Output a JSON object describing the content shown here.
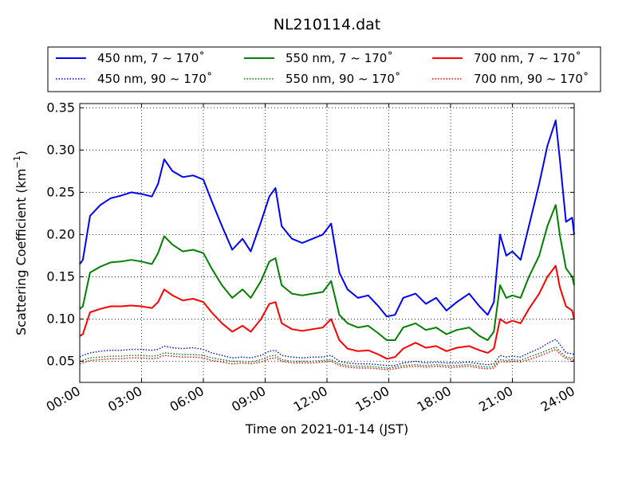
{
  "chart_data": {
    "type": "line",
    "title": "NL210114.dat",
    "xlabel": "Time on 2021-01-14 (JST)",
    "ylabel_main": "Scattering Coefficient (km",
    "ylabel_sup": "−1",
    "ylabel_end": ")",
    "xlim": [
      0,
      24
    ],
    "ylim": [
      0.025,
      0.355
    ],
    "grid": true,
    "legend_position": "top",
    "x_ticks": [
      0,
      3,
      6,
      9,
      12,
      15,
      18,
      21,
      24
    ],
    "x_tick_labels": [
      "00:00",
      "03:00",
      "06:00",
      "09:00",
      "12:00",
      "15:00",
      "18:00",
      "21:00",
      "24:00"
    ],
    "y_ticks": [
      0.05,
      0.1,
      0.15,
      0.2,
      0.25,
      0.3,
      0.35
    ],
    "y_tick_labels": [
      "0.05",
      "0.10",
      "0.15",
      "0.20",
      "0.25",
      "0.30",
      "0.35"
    ],
    "x_hours": [
      0,
      0.15,
      0.5,
      1,
      1.5,
      2,
      2.5,
      3,
      3.5,
      3.8,
      4.1,
      4.5,
      5,
      5.5,
      6,
      6.4,
      6.9,
      7.4,
      7.9,
      8.3,
      8.8,
      9.2,
      9.5,
      9.8,
      10.3,
      10.8,
      11.3,
      11.8,
      12.2,
      12.6,
      13,
      13.5,
      14,
      14.5,
      14.9,
      15.3,
      15.7,
      16.3,
      16.8,
      17.3,
      17.8,
      18.3,
      18.9,
      19.4,
      19.8,
      20.1,
      20.4,
      20.7,
      21,
      21.4,
      21.8,
      22.3,
      22.7,
      23.1,
      23.3,
      23.6,
      23.9,
      24
    ],
    "series": [
      {
        "name": "450 nm, 7 ~ 170˚",
        "color": "#0000ff",
        "style": "solid",
        "values": [
          0.165,
          0.17,
          0.222,
          0.235,
          0.243,
          0.246,
          0.25,
          0.248,
          0.245,
          0.26,
          0.289,
          0.275,
          0.268,
          0.27,
          0.265,
          0.24,
          0.21,
          0.182,
          0.195,
          0.18,
          0.215,
          0.245,
          0.255,
          0.21,
          0.195,
          0.19,
          0.195,
          0.2,
          0.213,
          0.155,
          0.135,
          0.125,
          0.128,
          0.115,
          0.103,
          0.105,
          0.125,
          0.13,
          0.118,
          0.125,
          0.11,
          0.12,
          0.13,
          0.115,
          0.105,
          0.12,
          0.2,
          0.175,
          0.18,
          0.17,
          0.21,
          0.26,
          0.305,
          0.335,
          0.29,
          0.215,
          0.22,
          0.2
        ]
      },
      {
        "name": "550 nm, 7 ~ 170˚",
        "color": "#008000",
        "style": "solid",
        "values": [
          0.112,
          0.115,
          0.155,
          0.162,
          0.167,
          0.168,
          0.17,
          0.168,
          0.165,
          0.178,
          0.198,
          0.188,
          0.18,
          0.182,
          0.178,
          0.16,
          0.14,
          0.125,
          0.135,
          0.125,
          0.145,
          0.168,
          0.172,
          0.14,
          0.13,
          0.128,
          0.13,
          0.132,
          0.145,
          0.105,
          0.095,
          0.09,
          0.092,
          0.083,
          0.075,
          0.075,
          0.09,
          0.095,
          0.087,
          0.09,
          0.082,
          0.087,
          0.09,
          0.08,
          0.075,
          0.085,
          0.14,
          0.125,
          0.128,
          0.125,
          0.15,
          0.175,
          0.21,
          0.235,
          0.2,
          0.16,
          0.15,
          0.14
        ]
      },
      {
        "name": "700 nm, 7 ~ 170˚",
        "color": "#ff0000",
        "style": "solid",
        "values": [
          0.08,
          0.082,
          0.108,
          0.112,
          0.115,
          0.115,
          0.116,
          0.115,
          0.113,
          0.12,
          0.135,
          0.128,
          0.122,
          0.124,
          0.12,
          0.108,
          0.095,
          0.085,
          0.092,
          0.085,
          0.1,
          0.118,
          0.12,
          0.095,
          0.088,
          0.086,
          0.088,
          0.09,
          0.1,
          0.075,
          0.065,
          0.062,
          0.063,
          0.058,
          0.053,
          0.055,
          0.065,
          0.072,
          0.066,
          0.068,
          0.062,
          0.066,
          0.068,
          0.063,
          0.06,
          0.065,
          0.1,
          0.095,
          0.098,
          0.095,
          0.112,
          0.13,
          0.15,
          0.163,
          0.138,
          0.115,
          0.11,
          0.1
        ]
      },
      {
        "name": "450 nm, 90 ~ 170˚",
        "color": "#0000ff",
        "style": "dotted",
        "values": [
          0.055,
          0.057,
          0.06,
          0.062,
          0.063,
          0.063,
          0.064,
          0.064,
          0.063,
          0.064,
          0.068,
          0.066,
          0.065,
          0.066,
          0.064,
          0.06,
          0.057,
          0.054,
          0.055,
          0.054,
          0.057,
          0.062,
          0.063,
          0.057,
          0.055,
          0.054,
          0.055,
          0.055,
          0.057,
          0.05,
          0.048,
          0.047,
          0.047,
          0.046,
          0.045,
          0.045,
          0.048,
          0.05,
          0.048,
          0.049,
          0.048,
          0.048,
          0.049,
          0.047,
          0.046,
          0.047,
          0.057,
          0.055,
          0.056,
          0.055,
          0.06,
          0.065,
          0.071,
          0.076,
          0.07,
          0.06,
          0.059,
          0.058
        ]
      },
      {
        "name": "550 nm, 90 ~ 170˚",
        "color": "#008000",
        "style": "dotted",
        "values": [
          0.05,
          0.051,
          0.054,
          0.055,
          0.056,
          0.056,
          0.057,
          0.057,
          0.056,
          0.057,
          0.06,
          0.059,
          0.058,
          0.058,
          0.057,
          0.054,
          0.052,
          0.05,
          0.05,
          0.049,
          0.052,
          0.056,
          0.057,
          0.052,
          0.05,
          0.05,
          0.05,
          0.051,
          0.052,
          0.047,
          0.045,
          0.044,
          0.044,
          0.043,
          0.042,
          0.043,
          0.045,
          0.046,
          0.045,
          0.046,
          0.045,
          0.045,
          0.046,
          0.044,
          0.043,
          0.044,
          0.052,
          0.051,
          0.052,
          0.051,
          0.055,
          0.059,
          0.063,
          0.067,
          0.062,
          0.055,
          0.054,
          0.053
        ]
      },
      {
        "name": "700 nm, 90 ~ 170˚",
        "color": "#ff0000",
        "style": "dotted",
        "values": [
          0.047,
          0.048,
          0.051,
          0.052,
          0.053,
          0.053,
          0.054,
          0.054,
          0.053,
          0.054,
          0.057,
          0.056,
          0.055,
          0.055,
          0.054,
          0.051,
          0.049,
          0.047,
          0.048,
          0.047,
          0.049,
          0.053,
          0.054,
          0.05,
          0.048,
          0.048,
          0.048,
          0.049,
          0.05,
          0.045,
          0.043,
          0.042,
          0.042,
          0.041,
          0.04,
          0.041,
          0.043,
          0.044,
          0.043,
          0.044,
          0.043,
          0.043,
          0.044,
          0.042,
          0.041,
          0.042,
          0.05,
          0.049,
          0.05,
          0.049,
          0.052,
          0.056,
          0.06,
          0.064,
          0.059,
          0.053,
          0.052,
          0.051
        ]
      }
    ]
  }
}
